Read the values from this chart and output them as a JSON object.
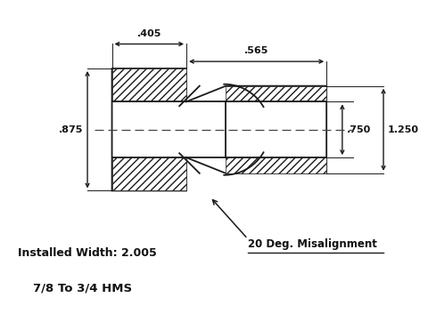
{
  "bg_color": "#ffffff",
  "line_color": "#1a1a1a",
  "text_color": "#111111",
  "dim_color": "#1a1a1a",
  "label_installed": "Installed Width: 2.005",
  "label_hms": "7/8 To 3/4 HMS",
  "label_misalign": "20 Deg. Misalignment",
  "dim_875": ".875",
  "dim_405": ".405",
  "dim_565": ".565",
  "dim_750": ".750",
  "dim_1250": "1.250",
  "figsize": [
    4.8,
    3.71
  ],
  "dpi": 100
}
